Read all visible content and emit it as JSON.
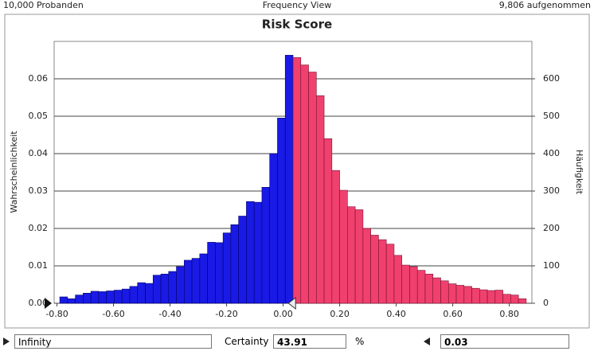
{
  "header": {
    "left": "10,000 Probanden",
    "center": "Frequency View",
    "right": "9,806 aufgenommen"
  },
  "chart_data": {
    "type": "histogram",
    "title": "Risk Score",
    "ylabel": "Wahrscheinlichkeit",
    "y2label": "Häufigkeit",
    "bins": [
      -0.79,
      -0.7625,
      -0.735,
      -0.7075,
      -0.68,
      -0.6525,
      -0.625,
      -0.5975,
      -0.57,
      -0.5425,
      -0.515,
      -0.4875,
      -0.46,
      -0.4325,
      -0.405,
      -0.3775,
      -0.35,
      -0.3225,
      -0.295,
      -0.2675,
      -0.24,
      -0.2125,
      -0.185,
      -0.1575,
      -0.13,
      -0.1025,
      -0.075,
      -0.0475,
      -0.02,
      0.0075,
      0.035,
      0.0625,
      0.09,
      0.1175,
      0.145,
      0.1725,
      0.2,
      0.2275,
      0.255,
      0.2825,
      0.31,
      0.3375,
      0.365,
      0.3925,
      0.42,
      0.4475,
      0.475,
      0.5025,
      0.53,
      0.5575,
      0.585,
      0.6125,
      0.64,
      0.6675,
      0.695,
      0.7225,
      0.75,
      0.7775,
      0.805,
      0.8325,
      0.86
    ],
    "values": [
      0.0017,
      0.0012,
      0.0022,
      0.0027,
      0.0032,
      0.0031,
      0.0033,
      0.0035,
      0.0038,
      0.0045,
      0.0055,
      0.0053,
      0.0075,
      0.0078,
      0.0085,
      0.0098,
      0.0115,
      0.012,
      0.0132,
      0.0163,
      0.0162,
      0.0188,
      0.021,
      0.0233,
      0.0272,
      0.027,
      0.031,
      0.04,
      0.0495,
      0.0663,
      0.0657,
      0.0637,
      0.0618,
      0.0555,
      0.044,
      0.0355,
      0.0302,
      0.0258,
      0.025,
      0.02,
      0.0182,
      0.017,
      0.0158,
      0.0128,
      0.0102,
      0.0098,
      0.0088,
      0.0078,
      0.0068,
      0.006,
      0.0052,
      0.0048,
      0.0045,
      0.004,
      0.0036,
      0.0034,
      0.0035,
      0.0024,
      0.0022,
      0.0012
    ],
    "color_in": "#1a1ae6",
    "color_out": "#f0406e",
    "xlim": [
      -0.81,
      0.88
    ],
    "ylim": [
      0,
      0.07
    ],
    "y2lim": [
      0,
      700
    ],
    "xticks": [
      {
        "value": -0.8,
        "label": "-0.80"
      },
      {
        "value": -0.6,
        "label": "-0.60"
      },
      {
        "value": -0.4,
        "label": "-0.40"
      },
      {
        "value": -0.2,
        "label": "-0.20"
      },
      {
        "value": 0,
        "label": "0.00"
      },
      {
        "value": 0.2,
        "label": "0.20"
      },
      {
        "value": 0.4,
        "label": "0.40"
      },
      {
        "value": 0.6,
        "label": "0.60"
      },
      {
        "value": 0.8,
        "label": "0.80"
      }
    ],
    "yticks": [
      {
        "value": 0,
        "label": "0.00"
      },
      {
        "value": 0.01,
        "label": "0.01"
      },
      {
        "value": 0.02,
        "label": "0.02"
      },
      {
        "value": 0.03,
        "label": "0.03"
      },
      {
        "value": 0.04,
        "label": "0.04"
      },
      {
        "value": 0.05,
        "label": "0.05"
      },
      {
        "value": 0.06,
        "label": "0.06"
      }
    ],
    "y2ticks": [
      0,
      100,
      200,
      300,
      400,
      500,
      600
    ],
    "grid": true
  },
  "controls": {
    "lower": "Infinity",
    "certainty_label": "Certainty",
    "certainty": "43.91",
    "percent": "%",
    "upper": 0.03
  }
}
